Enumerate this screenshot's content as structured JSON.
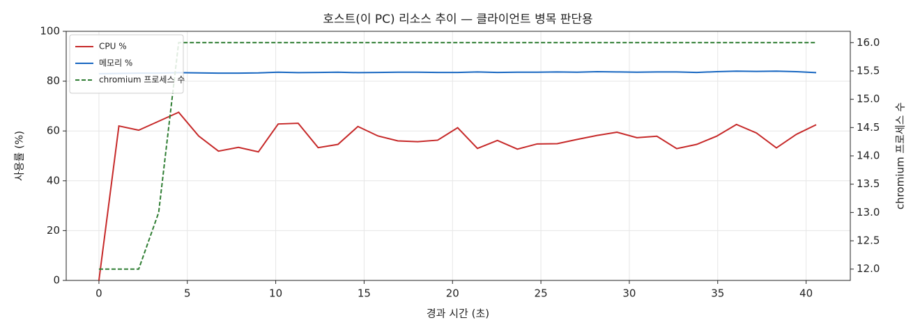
{
  "chart_data": {
    "type": "line",
    "title": "호스트(이 PC) 리소스 추이 — 클라이언트 병목 판단용",
    "x_label": "경과 시간 (초)",
    "y_label": "사용률 (%)",
    "y2_label": "chromium 프로세스 수",
    "x": [
      0,
      1.13,
      2.25,
      3.38,
      4.51,
      5.64,
      6.76,
      7.89,
      9.02,
      10.14,
      11.27,
      12.4,
      13.52,
      14.65,
      15.78,
      16.91,
      18.03,
      19.16,
      20.29,
      21.41,
      22.54,
      23.67,
      24.79,
      25.92,
      27.05,
      28.18,
      29.3,
      30.43,
      31.56,
      32.68,
      33.81,
      34.94,
      36.06,
      37.19,
      38.32,
      39.44,
      40.57
    ],
    "series": [
      {
        "name": "CPU %",
        "color": "#c62828",
        "linestyle": "solid",
        "values": [
          0,
          62.0,
          60.3,
          63.9,
          67.5,
          58.0,
          51.9,
          53.4,
          51.6,
          62.8,
          63.1,
          53.3,
          54.6,
          61.8,
          58.0,
          56.0,
          55.7,
          56.3,
          61.3,
          53.0,
          56.2,
          52.7,
          54.8,
          54.9,
          56.6,
          58.2,
          59.5,
          57.3,
          57.9,
          52.9,
          54.6,
          57.9,
          62.6,
          59.2,
          53.2,
          58.6,
          62.5
        ]
      },
      {
        "name": "메모리 %",
        "color": "#1565c0",
        "linestyle": "solid",
        "values": [
          83.0,
          83.1,
          83.2,
          83.2,
          83.4,
          83.3,
          83.2,
          83.2,
          83.3,
          83.6,
          83.4,
          83.5,
          83.6,
          83.4,
          83.5,
          83.6,
          83.6,
          83.5,
          83.5,
          83.7,
          83.5,
          83.6,
          83.6,
          83.7,
          83.6,
          83.8,
          83.7,
          83.6,
          83.7,
          83.7,
          83.5,
          83.8,
          84.0,
          83.9,
          84.0,
          83.8,
          83.4
        ]
      },
      {
        "name": "chromium 프로세스 수",
        "color": "#2e7d32",
        "linestyle": "dashed",
        "axis": "y2",
        "values": [
          12,
          12,
          12,
          13,
          16,
          16,
          16,
          16,
          16,
          16,
          16,
          16,
          16,
          16,
          16,
          16,
          16,
          16,
          16,
          16,
          16,
          16,
          16,
          16,
          16,
          16,
          16,
          16,
          16,
          16,
          16,
          16,
          16,
          16,
          16,
          16,
          16
        ]
      }
    ],
    "xlim": [
      -1.85,
      42.5
    ],
    "xticks": [
      0,
      5,
      10,
      15,
      20,
      25,
      30,
      35,
      40
    ],
    "ylim": [
      0,
      100
    ],
    "yticks": [
      0,
      20,
      40,
      60,
      80,
      100
    ],
    "y2lim": [
      11.8,
      16.2
    ],
    "y2ticks": [
      {
        "value": 12,
        "label": "12.0"
      },
      {
        "value": 12.5,
        "label": "12.5"
      },
      {
        "value": 13,
        "label": "13.0"
      },
      {
        "value": 13.5,
        "label": "13.5"
      },
      {
        "value": 14,
        "label": "14.0"
      },
      {
        "value": 14.5,
        "label": "14.5"
      },
      {
        "value": 15,
        "label": "15.0"
      },
      {
        "value": 15.5,
        "label": "15.5"
      },
      {
        "value": 16,
        "label": "16.0"
      }
    ],
    "grid": true,
    "legend": "upper-left"
  }
}
